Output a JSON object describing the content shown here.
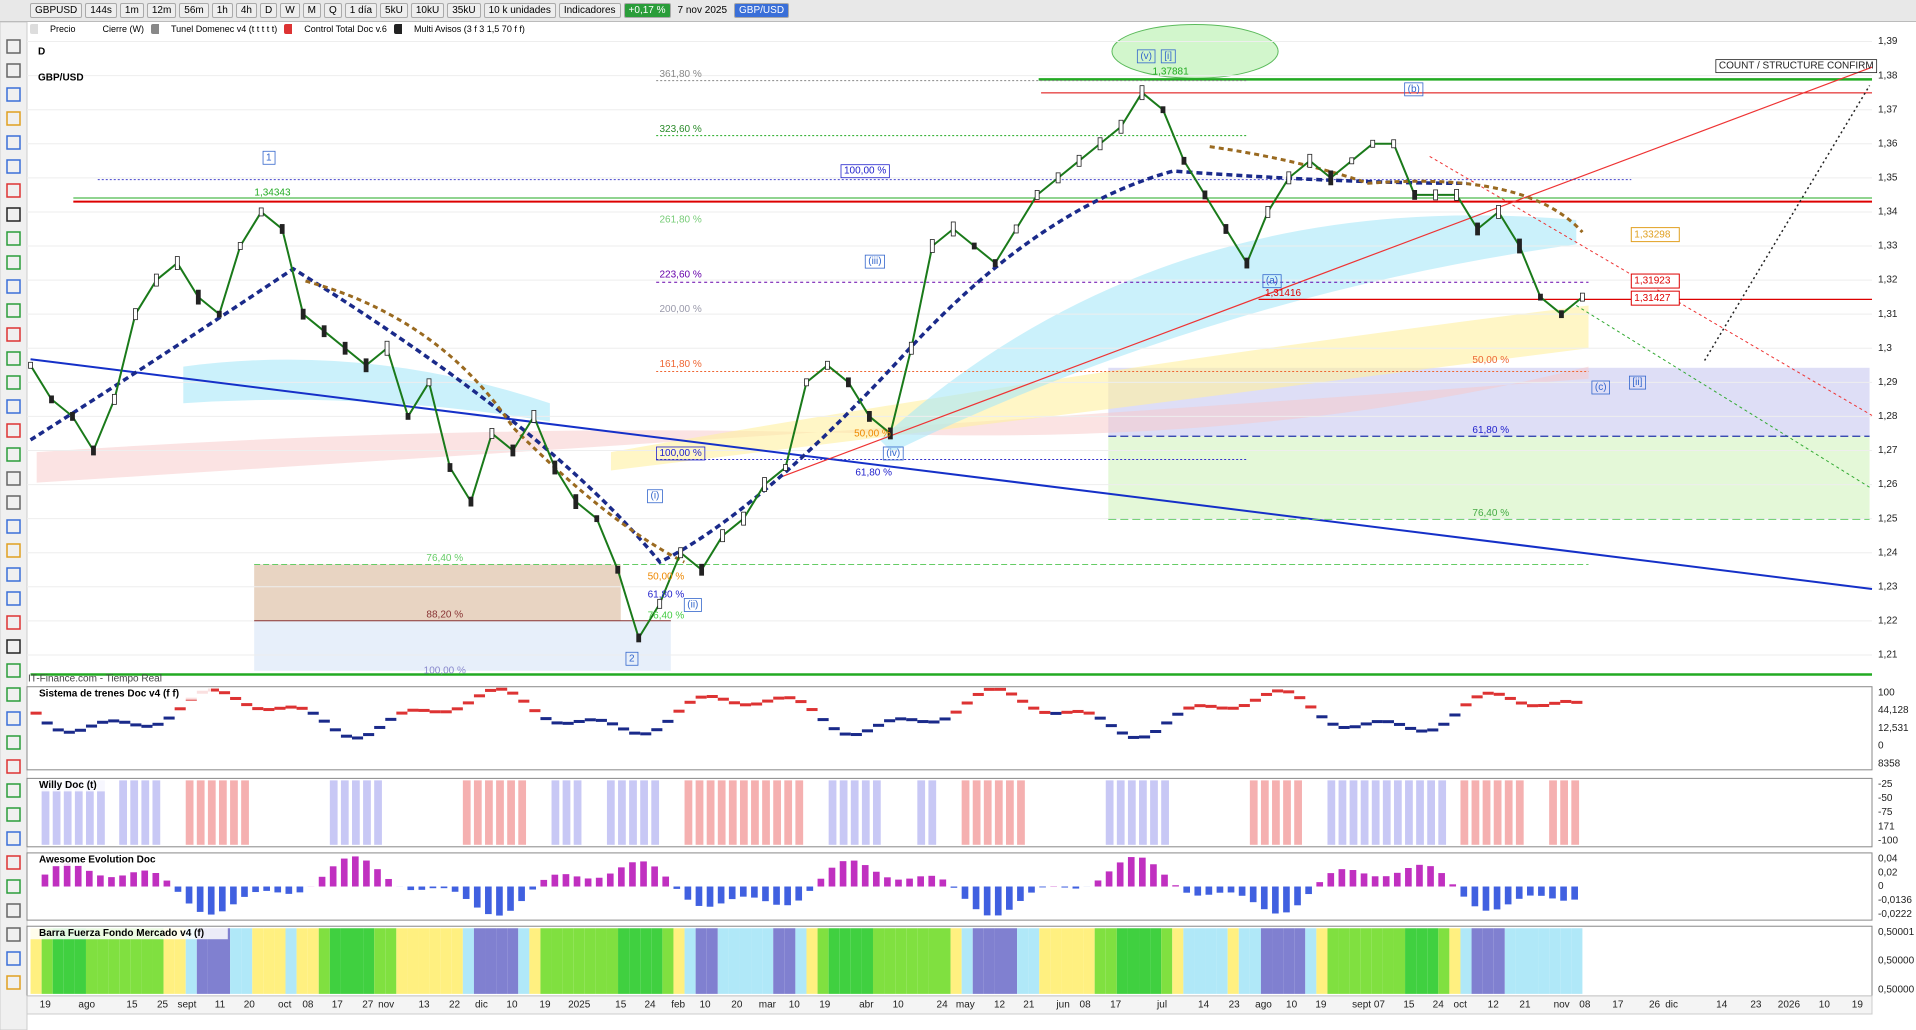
{
  "toolbar": {
    "symbol": "GBPUSD",
    "buttons": [
      "144s",
      "1m",
      "12m",
      "56m",
      "1h",
      "4h",
      "D",
      "W",
      "M",
      "Q",
      "1 día",
      "5kU",
      "10kU",
      "35kU",
      "10 k unidades",
      "Indicadores"
    ],
    "change": "+0,17 %",
    "date": "7 nov 2025",
    "pair": "GBP/USD"
  },
  "legend": [
    "Precio",
    "Cierre (W)",
    "Tunel Domenec v4 (t t t t t)",
    "Control Total Doc v.6",
    "Multi Avisos (3 f 3 1,5 70 f f)"
  ],
  "chart": {
    "timeframe": "D",
    "title": "GBP/USD",
    "source": "IT-Finance.com - Tiempo Real",
    "price_ticks": [
      {
        "value": 1.39,
        "label": "1,39"
      },
      {
        "value": 1.38,
        "label": "1,38"
      },
      {
        "value": 1.37,
        "label": "1,37"
      },
      {
        "value": 1.36,
        "label": "1,36"
      },
      {
        "value": 1.35,
        "label": "1,35"
      },
      {
        "value": 1.34,
        "label": "1,34"
      },
      {
        "value": 1.33,
        "label": "1,33"
      },
      {
        "value": 1.32,
        "label": "1,32"
      },
      {
        "value": 1.31,
        "label": "1,31"
      },
      {
        "value": 1.3,
        "label": "1,3"
      },
      {
        "value": 1.29,
        "label": "1,29"
      },
      {
        "value": 1.28,
        "label": "1,28"
      },
      {
        "value": 1.27,
        "label": "1,27"
      },
      {
        "value": 1.26,
        "label": "1,26"
      },
      {
        "value": 1.25,
        "label": "1,25"
      },
      {
        "value": 1.24,
        "label": "1,24"
      },
      {
        "value": 1.23,
        "label": "1,23"
      },
      {
        "value": 1.22,
        "label": "1,22"
      },
      {
        "value": 1.21,
        "label": "1,21"
      }
    ],
    "price_tags": [
      "1,33298",
      "1,31923",
      "1,31427"
    ],
    "close": [
      1.295,
      1.285,
      1.28,
      1.27,
      1.285,
      1.31,
      1.32,
      1.325,
      1.315,
      1.31,
      1.33,
      1.34,
      1.335,
      1.31,
      1.305,
      1.3,
      1.295,
      1.3,
      1.28,
      1.29,
      1.265,
      1.255,
      1.275,
      1.27,
      1.28,
      1.265,
      1.255,
      1.25,
      1.235,
      1.215,
      1.225,
      1.24,
      1.235,
      1.245,
      1.25,
      1.26,
      1.265,
      1.29,
      1.295,
      1.29,
      1.28,
      1.275,
      1.3,
      1.33,
      1.335,
      1.33,
      1.325,
      1.335,
      1.345,
      1.35,
      1.355,
      1.36,
      1.365,
      1.375,
      1.37,
      1.355,
      1.345,
      1.335,
      1.325,
      1.34,
      1.35,
      1.355,
      1.35,
      1.355,
      1.36,
      1.36,
      1.345,
      1.345,
      1.345,
      1.335,
      1.34,
      1.33,
      1.315,
      1.31,
      1.315
    ],
    "annotations": [
      "361,80 %",
      "323,60 %",
      "261,80 %",
      "223,60 %",
      "200,00 %",
      "161,80 %",
      "100,00 %",
      "100,00 %",
      "50,00 %",
      "61,80 %",
      "76,40 %",
      "88,20 %",
      "100,00 %",
      "50,00 %",
      "61,80 %",
      "76,40 %",
      "50,00 %",
      "61,80 %",
      "76,40 %",
      "1,34343",
      "1,37881",
      "1,31416",
      "1",
      "2",
      "(i)",
      "(ii)",
      "(iii)",
      "(iv)",
      "(v)",
      "[i]",
      "(b)",
      "(a)",
      "(c)",
      "[ii]",
      "COUNT / STRUCTURE CONFIRM"
    ]
  },
  "panels": [
    {
      "title": "Sistema de trenes Doc v4 (f f)",
      "axis": [
        "100",
        "44,128",
        "12,531",
        "0",
        "8358"
      ]
    },
    {
      "title": "Willy Doc (t)",
      "axis": [
        "-25",
        "-50",
        "-75",
        "171",
        "-100"
      ]
    },
    {
      "title": "Awesome Evolution Doc",
      "axis": [
        "0,04",
        "0,02",
        "0",
        "-0,0136",
        "-0,0222"
      ]
    },
    {
      "title": "Barra Fuerza Fondo Mercado v4 (f)",
      "axis": [
        "0,50001",
        "0,50000",
        "0,50000"
      ]
    }
  ],
  "time_axis": [
    "19",
    "ago",
    "15",
    "25",
    "sept",
    "11",
    "20",
    "oct",
    "08",
    "17",
    "27",
    "nov",
    "13",
    "22",
    "dic",
    "10",
    "19",
    "2025",
    "15",
    "24",
    "feb",
    "10",
    "20",
    "mar",
    "10",
    "19",
    "abr",
    "10",
    "24",
    "may",
    "12",
    "21",
    "jun",
    "08",
    "17",
    "jul",
    "14",
    "23",
    "ago",
    "10",
    "19",
    "sept 07",
    "15",
    "24",
    "oct",
    "12",
    "21",
    "nov",
    "08",
    "17",
    "26",
    "dic",
    "14",
    "23",
    "2026",
    "10",
    "19"
  ]
}
